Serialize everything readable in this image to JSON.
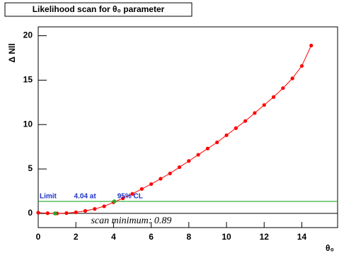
{
  "chart_data": {
    "type": "line",
    "title": "Likelihood scan for θ₀ parameter",
    "x_label": "θ₀",
    "y_label": "Δ Nll",
    "x": [
      0,
      0.5,
      1,
      1.5,
      2,
      2.5,
      3,
      3.5,
      4,
      4.5,
      5,
      5.5,
      6,
      6.5,
      7,
      7.5,
      8,
      8.5,
      9,
      9.5,
      10,
      10.5,
      11,
      11.5,
      12,
      12.5,
      13,
      13.5,
      14,
      14.5
    ],
    "series": [
      {
        "name": "scan",
        "color": "#ff0000",
        "values": [
          0.08,
          0.02,
          0.0,
          0.03,
          0.12,
          0.28,
          0.5,
          0.8,
          1.25,
          1.7,
          2.2,
          2.75,
          3.3,
          3.9,
          4.5,
          5.2,
          5.9,
          6.6,
          7.3,
          8.0,
          8.8,
          9.6,
          10.4,
          11.3,
          12.2,
          13.1,
          14.1,
          15.2,
          16.6,
          18.9
        ]
      }
    ],
    "cl_level": 1.35,
    "markers": {
      "color": "#22aa22",
      "x": [
        0.89,
        4.04
      ],
      "y": [
        0,
        1.35
      ]
    },
    "annotations": {
      "limit": [
        "Limit",
        "4.04 at",
        "95% CL"
      ],
      "minimum": "scan minimum: 0.89"
    },
    "xlim": [
      0,
      15.9
    ],
    "ylim": [
      -1.6,
      21
    ],
    "xticks": [
      0,
      2,
      4,
      6,
      8,
      10,
      12,
      14
    ],
    "yticks": [
      0,
      5,
      10,
      15,
      20
    ]
  }
}
